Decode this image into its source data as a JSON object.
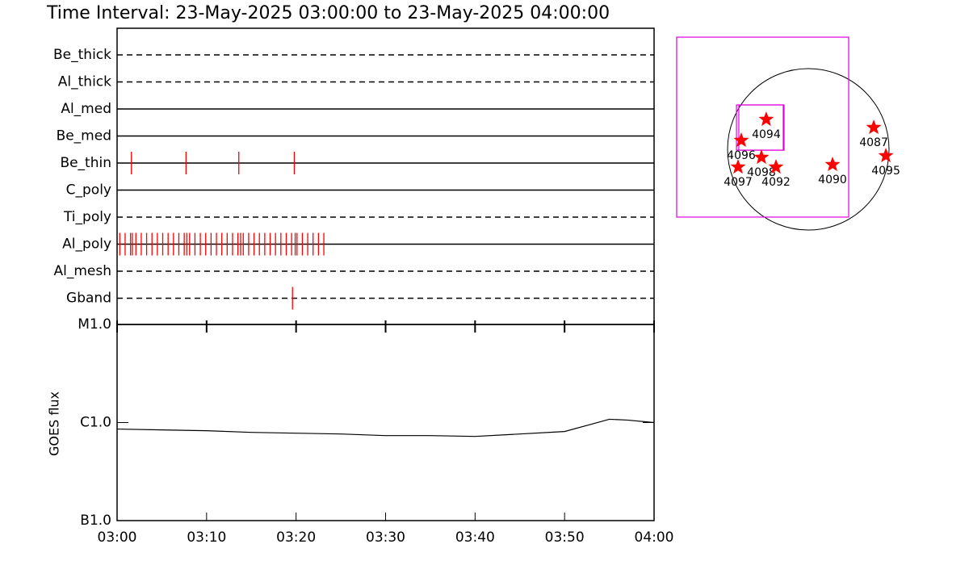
{
  "chart_data": [
    {
      "type": "timeline",
      "title": "Time Interval: 23-May-2025 03:00:00 to 23-May-2025 04:00:00",
      "xlim": [
        0,
        60
      ],
      "series": [
        {
          "name": "Be_thick",
          "line_style": "dashed",
          "color": "#ff0000",
          "values": []
        },
        {
          "name": "Al_thick",
          "line_style": "dashed",
          "color": "#ff0000",
          "values": []
        },
        {
          "name": "Al_med",
          "line_style": "solid",
          "color": "#ff0000",
          "values": []
        },
        {
          "name": "Be_med",
          "line_style": "solid",
          "color": "#ff0000",
          "values": []
        },
        {
          "name": "Be_thin",
          "line_style": "solid",
          "color": "#ff0000",
          "values": [
            1.6,
            7.7,
            13.6,
            19.8
          ]
        },
        {
          "name": "C_poly",
          "line_style": "solid",
          "color": "#ff0000",
          "values": []
        },
        {
          "name": "Ti_poly",
          "line_style": "dashed",
          "color": "#ff0000",
          "values": []
        },
        {
          "name": "Al_poly",
          "line_style": "solid",
          "color": "#ff0000",
          "values": [
            0.3,
            0.9,
            1.5,
            1.7,
            2.1,
            2.7,
            3.3,
            3.9,
            4.5,
            5.1,
            5.7,
            6.3,
            6.9,
            7.5,
            7.8,
            8.1,
            8.7,
            9.3,
            9.9,
            10.5,
            11.1,
            11.7,
            12.3,
            12.9,
            13.5,
            13.8,
            14.1,
            14.7,
            15.3,
            15.9,
            16.5,
            17.1,
            17.7,
            18.3,
            18.9,
            19.5,
            19.9,
            20.1,
            20.7,
            21.3,
            21.9,
            22.5,
            23.1
          ]
        },
        {
          "name": "Al_mesh",
          "line_style": "dashed",
          "color": "#ff0000",
          "values": []
        },
        {
          "name": "Gband",
          "line_style": "dashed",
          "color": "#ff0000",
          "values": [
            19.6
          ]
        }
      ]
    },
    {
      "type": "line",
      "y_label": "GOES flux",
      "log_scale": true,
      "color": "#000000",
      "x": [
        0,
        5,
        10,
        15,
        20,
        25,
        30,
        35,
        40,
        45,
        50,
        53,
        55,
        57,
        60
      ],
      "values": [
        8.58e-07,
        8.41e-07,
        8.25e-07,
        7.94e-07,
        7.79e-07,
        7.64e-07,
        7.36e-07,
        7.36e-07,
        7.22e-07,
        7.64e-07,
        8.1e-07,
        9.62e-07,
        1.08e-06,
        1.06e-06,
        1e-06
      ],
      "xlim": [
        0,
        60
      ],
      "xticks": [
        {
          "value": 0,
          "label": "03:00"
        },
        {
          "value": 10,
          "label": "03:10"
        },
        {
          "value": 20,
          "label": "03:20"
        },
        {
          "value": 30,
          "label": "03:30"
        },
        {
          "value": 40,
          "label": "03:40"
        },
        {
          "value": 50,
          "label": "03:50"
        },
        {
          "value": 60,
          "label": "04:00"
        }
      ],
      "ylim": [
        1e-07,
        1e-05
      ],
      "yticks": [
        {
          "value": 1e-07,
          "label": "B1.0"
        },
        {
          "value": 1e-06,
          "label": "C1.0"
        },
        {
          "value": 1e-05,
          "label": "M1.0"
        }
      ]
    },
    {
      "type": "scatter",
      "disk_radius": 960,
      "color": "#ff0000",
      "box_color": "#e000e0",
      "labels": [
        "4094",
        "4096",
        "4098",
        "4097",
        "4092",
        "4090",
        "4087",
        "4095"
      ],
      "x": [
        -500,
        -797,
        -557,
        -835,
        -384,
        288,
        778,
        922
      ],
      "values": [
        355,
        106,
        -96,
        -211,
        -211,
        -182,
        259,
        -77
      ],
      "boxes": [
        {
          "x": [
            -1565,
            480
          ],
          "y": [
            -806,
            1334
          ]
        },
        {
          "x": [
            -854,
            -298
          ],
          "y": [
            -10,
            528
          ]
        },
        {
          "x": [
            -826,
            -288
          ],
          "y": [
            -10,
            528
          ]
        }
      ]
    }
  ]
}
